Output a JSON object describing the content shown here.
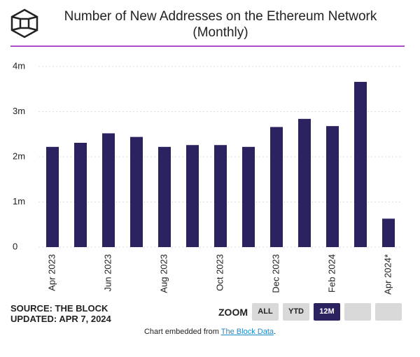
{
  "chart_data": {
    "type": "bar",
    "title": "Number of New Addresses on the Ethereum Network (Monthly)",
    "categories": [
      "Apr 2023",
      null,
      "Jun 2023",
      null,
      "Aug 2023",
      null,
      "Oct 2023",
      null,
      "Dec 2023",
      null,
      "Feb 2024",
      null,
      "Apr 2024*"
    ],
    "values": [
      2.22,
      2.31,
      2.52,
      2.44,
      2.22,
      2.26,
      2.26,
      2.22,
      2.66,
      2.84,
      2.68,
      3.66,
      0.63
    ],
    "color": "#2b2260",
    "ylim": [
      0,
      4
    ],
    "yticks": [
      0,
      {
        "value": 1,
        "label": "1m"
      },
      {
        "value": 2,
        "label": "2m"
      },
      {
        "value": 3,
        "label": "3m"
      },
      {
        "value": 4,
        "label": "4m"
      }
    ],
    "grid": true
  },
  "footer": {
    "source": "SOURCE: THE BLOCK",
    "updated": "UPDATED: APR 7, 2024",
    "zoom": "ZOOM",
    "buttons": [
      "ALL",
      "YTD",
      "12M"
    ],
    "embed": "Chart embedded from ",
    "link": "The Block Data",
    "end": "."
  }
}
